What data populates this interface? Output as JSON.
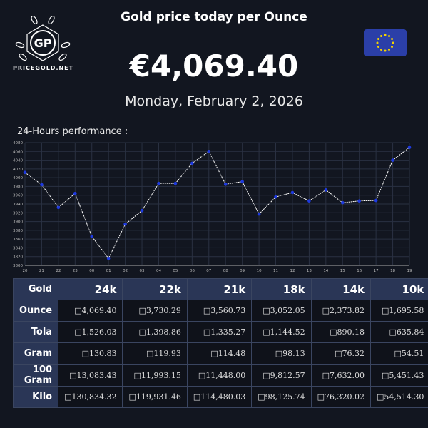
{
  "header": {
    "title": "Gold price today per Ounce",
    "price": "€4,069.40",
    "date": "Monday, February 2, 2026",
    "logo_text": "PRICEGOLD.NET",
    "logo_initials": "GP",
    "flag": "eu-flag"
  },
  "chart_data": {
    "type": "line",
    "title": "24-Hours performance :",
    "categories": [
      "20",
      "21",
      "22",
      "23",
      "00",
      "01",
      "02",
      "03",
      "04",
      "05",
      "06",
      "07",
      "08",
      "09",
      "10",
      "11",
      "12",
      "13",
      "14",
      "15",
      "16",
      "17",
      "18",
      "19"
    ],
    "values": [
      4012,
      3984,
      3932,
      3964,
      3866,
      3816,
      3894,
      3925,
      3987,
      3987,
      4033,
      4060,
      3985,
      3991,
      3917,
      3956,
      3966,
      3947,
      3972,
      3943,
      3947,
      3948,
      4040,
      4069
    ],
    "ylim": [
      3800,
      4080
    ],
    "yticks": [
      3800,
      3820,
      3840,
      3860,
      3880,
      3900,
      3920,
      3940,
      3960,
      3980,
      4000,
      4020,
      4040,
      4060,
      4080
    ],
    "grid": true,
    "colors": {
      "line": "#ffffff",
      "marker": "#1e3ae0",
      "grid": "#2a3142"
    }
  },
  "table": {
    "headers": [
      "Gold",
      "24k",
      "22k",
      "21k",
      "18k",
      "14k",
      "10k"
    ],
    "rows": [
      {
        "label": "Ounce",
        "values": [
          "□4,069.40",
          "□3,730.29",
          "□3,560.73",
          "□3,052.05",
          "□2,373.82",
          "□1,695.58"
        ]
      },
      {
        "label": "Tola",
        "values": [
          "□1,526.03",
          "□1,398.86",
          "□1,335.27",
          "□1,144.52",
          "□890.18",
          "□635.84"
        ]
      },
      {
        "label": "Gram",
        "values": [
          "□130.83",
          "□119.93",
          "□114.48",
          "□98.13",
          "□76.32",
          "□54.51"
        ]
      },
      {
        "label": "100 Gram",
        "values": [
          "□13,083.43",
          "□11,993.15",
          "□11,448.00",
          "□9,812.57",
          "□7,632.00",
          "□5,451.43"
        ]
      },
      {
        "label": "Kilo",
        "values": [
          "□130,834.32",
          "□119,931.46",
          "□114,480.03",
          "□98,125.74",
          "□76,320.02",
          "□54,514.30"
        ]
      }
    ]
  }
}
